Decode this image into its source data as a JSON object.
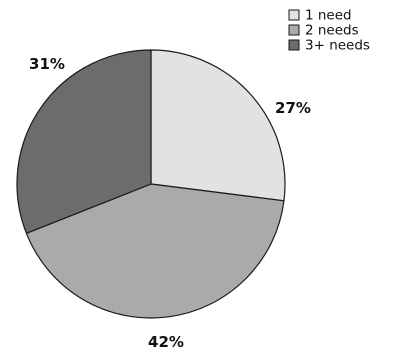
{
  "chart_data": {
    "type": "pie",
    "title": "",
    "slices": [
      {
        "label": "1 need",
        "value": 27,
        "display": "27%",
        "color": "#e2e2e2"
      },
      {
        "label": "2 needs",
        "value": 42,
        "display": "42%",
        "color": "#aaaaaa"
      },
      {
        "label": "3+ needs",
        "value": 31,
        "display": "31%",
        "color": "#6c6c6c"
      }
    ],
    "start_angle_deg": 0,
    "direction": "clockwise",
    "legend_position": "top-right",
    "outline_color": "#1a1a1a"
  }
}
